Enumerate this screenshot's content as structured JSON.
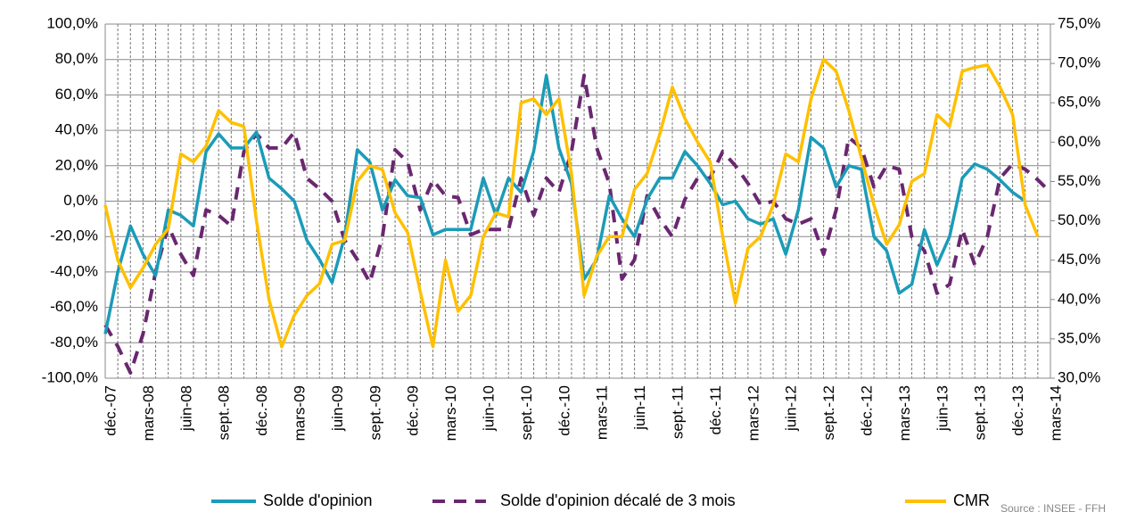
{
  "chart_data": {
    "type": "line",
    "categories": [
      "déc.-07",
      null,
      null,
      "mars-08",
      null,
      null,
      "juin-08",
      null,
      null,
      "sept.-08",
      null,
      null,
      "déc.-08",
      null,
      null,
      "mars-09",
      null,
      null,
      "juin-09",
      null,
      null,
      "sept.-09",
      null,
      null,
      "déc.-09",
      null,
      null,
      "mars-10",
      null,
      null,
      "juin-10",
      null,
      null,
      "sept.-10",
      null,
      null,
      "déc.-10",
      null,
      null,
      "mars-11",
      null,
      null,
      "juin-11",
      null,
      null,
      "sept.-11",
      null,
      null,
      "déc.-11",
      null,
      null,
      "mars-12",
      null,
      null,
      "juin-12",
      null,
      null,
      "sept.-12",
      null,
      null,
      "déc.-12",
      null,
      null,
      "mars-13",
      null,
      null,
      "juin-13",
      null,
      null,
      "sept.-13",
      null,
      null,
      "déc.-13",
      null,
      null,
      "mars-14"
    ],
    "series": [
      {
        "name": "Solde d'opinion",
        "color": "#1b9bb8",
        "dash": false,
        "values": [
          -75,
          -40,
          -14,
          -30,
          -42,
          -5,
          -8,
          -14,
          28,
          38,
          30,
          30,
          39,
          13,
          7,
          0,
          -22,
          -33,
          -46,
          -20,
          29,
          22,
          -5,
          12,
          3,
          2,
          -19,
          -16,
          -16,
          -16,
          13,
          -8,
          13,
          5,
          28,
          71,
          30,
          10,
          -44,
          -33,
          3,
          -10,
          -20,
          1,
          13,
          13,
          28,
          20,
          10,
          -2,
          0,
          -10,
          -13,
          -10,
          -30,
          -5,
          36,
          30,
          8,
          20,
          18,
          -20,
          -28,
          -52,
          -47,
          -16,
          -36,
          -20,
          13,
          21,
          18,
          12,
          5,
          0,
          null,
          null
        ]
      },
      {
        "name": "Solde d'opinion décalé de 3 mois",
        "color": "#6a2770",
        "dash": true,
        "values": [
          -70,
          -82,
          -97,
          -75,
          -40,
          -14,
          -30,
          -42,
          -5,
          -8,
          -14,
          28,
          38,
          30,
          30,
          39,
          13,
          7,
          0,
          -22,
          -33,
          -46,
          -20,
          29,
          22,
          -5,
          12,
          3,
          2,
          -19,
          -16,
          -16,
          -16,
          13,
          -8,
          13,
          5,
          28,
          71,
          30,
          10,
          -44,
          -33,
          3,
          -10,
          -20,
          1,
          13,
          13,
          28,
          20,
          10,
          -2,
          0,
          -10,
          -13,
          -10,
          -30,
          -5,
          36,
          30,
          8,
          20,
          18,
          -20,
          -28,
          -52,
          -47,
          -16,
          -36,
          -20,
          13,
          21,
          18,
          12,
          5
        ]
      },
      {
        "name": "CMR",
        "color": "#ffc000",
        "dash": false,
        "axis": "y2",
        "values": [
          52,
          45,
          41.5,
          44,
          47,
          49,
          58.5,
          57.5,
          59.5,
          64,
          62.5,
          62,
          50,
          40,
          34,
          38,
          40.5,
          42,
          47,
          47.5,
          55,
          57,
          56.5,
          51,
          48.5,
          41,
          34,
          45,
          38.5,
          40.5,
          48,
          51,
          50.5,
          65,
          65.5,
          63.5,
          65.5,
          56,
          40.5,
          45.5,
          48,
          48,
          54,
          56,
          61,
          67,
          63,
          60,
          57.5,
          48,
          39.5,
          46.5,
          48,
          52,
          58.5,
          57.5,
          65.5,
          70.5,
          69,
          64,
          58,
          52,
          47,
          49.5,
          55,
          56,
          63.5,
          62,
          69,
          69.5,
          69.8,
          67,
          63.5,
          52,
          48,
          null
        ]
      }
    ],
    "ylim": [
      -100,
      100
    ],
    "yticks": [
      {
        "value": -100,
        "label": "-100,0%"
      },
      {
        "value": -80,
        "label": "-80,0%"
      },
      {
        "value": -60,
        "label": "-60,0%"
      },
      {
        "value": -40,
        "label": "-40,0%"
      },
      {
        "value": -20,
        "label": "-20,0%"
      },
      {
        "value": 0,
        "label": "0,0%"
      },
      {
        "value": 20,
        "label": "20,0%"
      },
      {
        "value": 40,
        "label": "40,0%"
      },
      {
        "value": 60,
        "label": "60,0%"
      },
      {
        "value": 80,
        "label": "80,0%"
      },
      {
        "value": 100,
        "label": "100,0%"
      }
    ],
    "y2lim": [
      30,
      75
    ],
    "y2ticks": [
      {
        "value": 30,
        "label": "30,0%"
      },
      {
        "value": 35,
        "label": "35,0%"
      },
      {
        "value": 40,
        "label": "40,0%"
      },
      {
        "value": 45,
        "label": "45,0%"
      },
      {
        "value": 50,
        "label": "50,0%"
      },
      {
        "value": 55,
        "label": "55,0%"
      },
      {
        "value": 60,
        "label": "60,0%"
      },
      {
        "value": 65,
        "label": "65,0%"
      },
      {
        "value": 70,
        "label": "70,0%"
      },
      {
        "value": 75,
        "label": "75,0%"
      }
    ],
    "grid": true,
    "legend": "bottom",
    "source": "Source : INSEE - FFH"
  }
}
